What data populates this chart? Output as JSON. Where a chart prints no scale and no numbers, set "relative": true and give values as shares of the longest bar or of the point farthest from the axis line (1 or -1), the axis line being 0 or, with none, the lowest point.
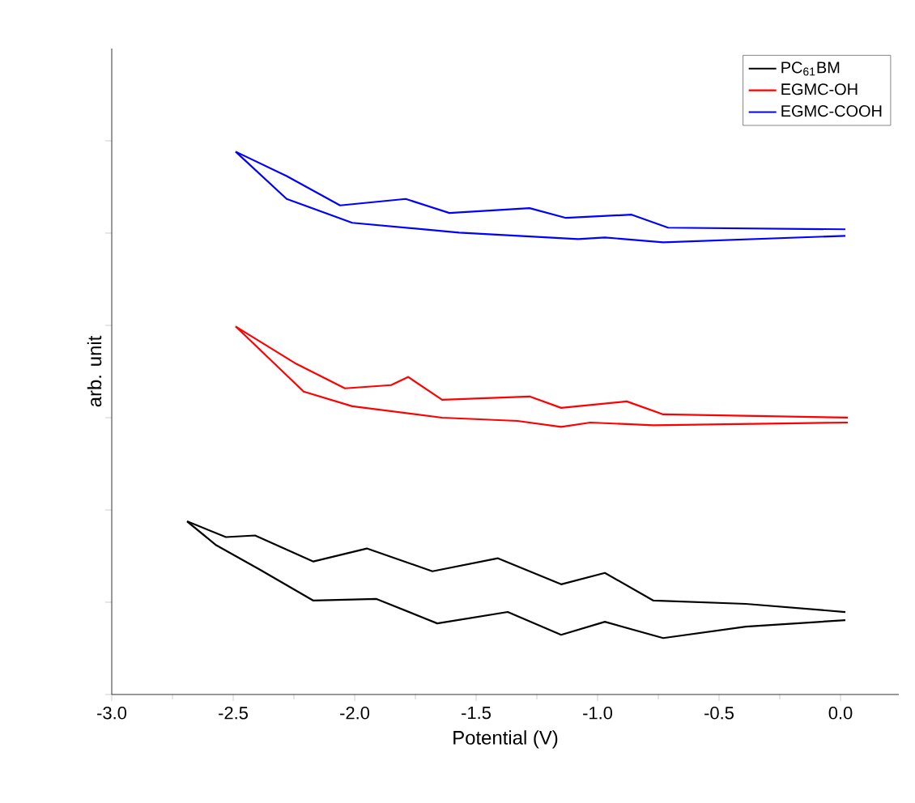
{
  "chart_data": {
    "type": "line",
    "relative": true,
    "xlabel": "Potential (V)",
    "ylabel": "arb. unit",
    "xlim": [
      -3.0,
      0.24
    ],
    "xticks": [
      {
        "value": -3.0,
        "label": "-3.0"
      },
      {
        "value": -2.5,
        "label": "-2.5"
      },
      {
        "value": -2.0,
        "label": "-2.0"
      },
      {
        "value": -1.5,
        "label": "-1.5"
      },
      {
        "value": -1.0,
        "label": "-1.0"
      },
      {
        "value": -0.5,
        "label": "-0.5"
      },
      {
        "value": 0.0,
        "label": "0.0"
      }
    ],
    "legend": "top right",
    "line_style": "solid",
    "series": [
      {
        "name": "PC$_{61}$BM",
        "color": "#000000",
        "x": [
          -2.69,
          -2.53,
          -2.41,
          -2.17,
          -1.95,
          -1.68,
          -1.41,
          -1.15,
          -0.97,
          -0.77,
          -0.39,
          0.02
        ],
        "values": [
          0.319,
          0.29,
          0.293,
          0.245,
          0.269,
          0.227,
          0.251,
          0.203,
          0.224,
          0.173,
          0.167,
          0.152
        ]
      },
      {
        "color": "#000000",
        "x": [
          0.02,
          -0.39,
          -0.73,
          -0.97,
          -1.15,
          -1.37,
          -1.66,
          -1.91,
          -2.17,
          -2.39,
          -2.57,
          -2.69
        ],
        "values": [
          0.137,
          0.125,
          0.104,
          0.134,
          0.11,
          0.152,
          0.131,
          0.176,
          0.173,
          0.23,
          0.275,
          0.319
        ]
      },
      {
        "name": "EGMC-OH",
        "color": "#ff0000",
        "x": [
          -2.49,
          -2.24,
          -2.04,
          -1.85,
          -1.78,
          -1.64,
          -1.28,
          -1.15,
          -0.88,
          -0.73,
          0.03
        ],
        "values": [
          0.678,
          0.609,
          0.564,
          0.57,
          0.585,
          0.543,
          0.549,
          0.528,
          0.54,
          0.516,
          0.51
        ]
      },
      {
        "color": "#ff0000",
        "x": [
          0.03,
          -0.77,
          -1.03,
          -1.15,
          -1.33,
          -1.64,
          -2.01,
          -2.21,
          -2.49
        ],
        "values": [
          0.501,
          0.496,
          0.501,
          0.493,
          0.504,
          0.51,
          0.531,
          0.558,
          0.678
        ]
      },
      {
        "name": "EGMC-COOH",
        "color": "#0000ff",
        "x": [
          -2.49,
          -2.28,
          -2.06,
          -1.79,
          -1.61,
          -1.28,
          -1.13,
          -0.86,
          -0.71,
          0.02
        ],
        "values": [
          1.0,
          0.955,
          0.901,
          0.913,
          0.887,
          0.896,
          0.878,
          0.884,
          0.86,
          0.857
        ]
      },
      {
        "color": "#0000ff",
        "x": [
          0.02,
          -0.73,
          -0.97,
          -1.08,
          -1.57,
          -2.01,
          -2.28,
          -2.49
        ],
        "values": [
          0.845,
          0.833,
          0.842,
          0.839,
          0.851,
          0.869,
          0.913,
          1.0
        ]
      }
    ]
  }
}
